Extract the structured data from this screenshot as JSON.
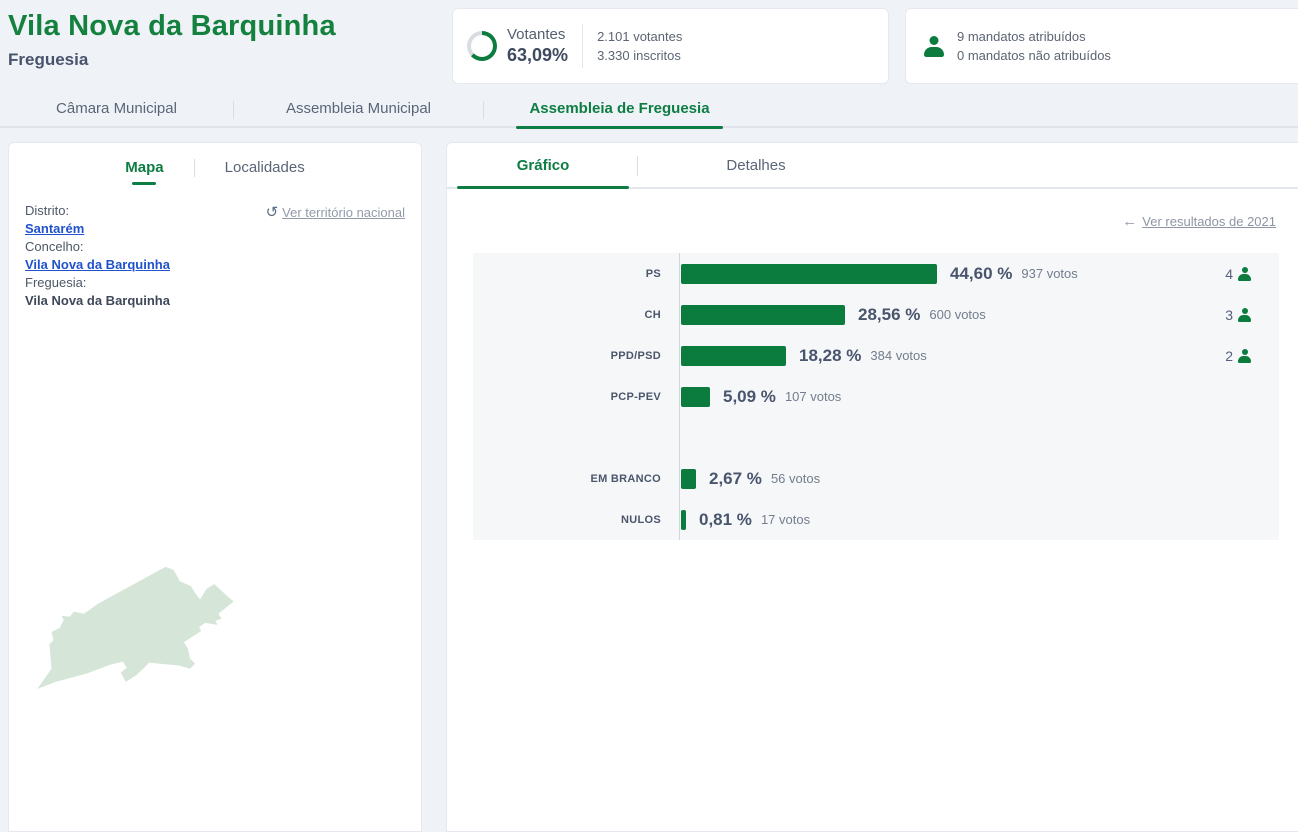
{
  "header": {
    "title": "Vila Nova da Barquinha",
    "subtitle": "Freguesia",
    "turnout_card": {
      "label": "Votantes",
      "percent_text": "63,09%",
      "percent_value": 63.09,
      "voters_line": "2.101 votantes",
      "registered_line": "3.330 inscritos"
    },
    "mandates_card": {
      "assigned_line": "9 mandatos atribuídos",
      "unassigned_line": "0 mandatos não atribuídos"
    }
  },
  "main_tabs": [
    {
      "label": "Câmara Municipal",
      "active": false
    },
    {
      "label": "Assembleia Municipal",
      "active": false
    },
    {
      "label": "Assembleia de Freguesia",
      "active": true
    }
  ],
  "left_panel": {
    "tabs": [
      {
        "label": "Mapa",
        "active": true
      },
      {
        "label": "Localidades",
        "active": false
      }
    ],
    "national_link": "Ver território nacional",
    "info": [
      {
        "label": "Distrito:",
        "value": "Santarém",
        "is_link": true
      },
      {
        "label": "Concelho:",
        "value": "Vila Nova da Barquinha",
        "is_link": true
      },
      {
        "label": "Freguesia:",
        "value": "Vila Nova da Barquinha",
        "is_link": false
      }
    ],
    "map_region_name": "Vila Nova da Barquinha"
  },
  "right_panel": {
    "tabs": [
      {
        "label": "Gráfico",
        "active": true
      },
      {
        "label": "Detalhes",
        "active": false
      }
    ],
    "previous_results_link": "Ver resultados de 2021"
  },
  "chart_data": {
    "type": "bar",
    "orientation": "horizontal",
    "categories": [
      "PS",
      "CH",
      "PPD/PSD",
      "PCP-PEV",
      "EM BRANCO",
      "NULOS"
    ],
    "values": [
      44.6,
      28.56,
      18.28,
      5.09,
      2.67,
      0.81
    ],
    "percent_labels": [
      "44,60 %",
      "28,56 %",
      "18,28 %",
      "5,09 %",
      "2,67 %",
      "0,81 %"
    ],
    "votes": [
      937,
      600,
      384,
      107,
      56,
      17
    ],
    "votes_labels": [
      "937 votos",
      "600 votos",
      "384 votos",
      "107 votos",
      "56 votos",
      "17 votos"
    ],
    "mandates": [
      4,
      3,
      2,
      null,
      null,
      null
    ],
    "separator_before_index": 4,
    "title": "",
    "xlabel": "",
    "ylabel": "",
    "xlim": [
      0,
      100
    ],
    "grid": false,
    "legend": "none",
    "bar_color": "#0b7b3e"
  },
  "icons": {
    "national_reset": "↺",
    "back_arrow": "←"
  },
  "colors": {
    "accent_green": "#0b7b3e",
    "title_green": "#15813e",
    "link_blue": "#2052cc",
    "muted_link": "#8d95a4",
    "donut_track": "#d9dde2",
    "chart_background": "#f5f7f9",
    "map_fill": "#d5e5d8"
  }
}
